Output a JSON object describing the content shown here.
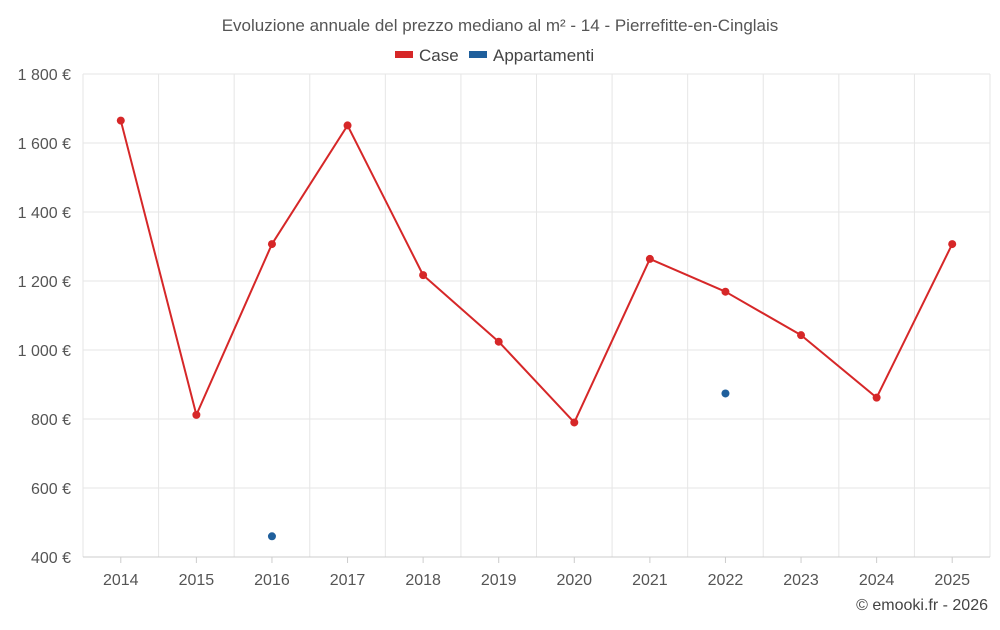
{
  "chart_data": {
    "type": "line",
    "title": "Evoluzione annuale del prezzo mediano al m² - 14 - Pierrefitte-en-Cinglais",
    "categories": [
      "2014",
      "2015",
      "2016",
      "2017",
      "2018",
      "2019",
      "2020",
      "2021",
      "2022",
      "2023",
      "2024",
      "2025"
    ],
    "series": [
      {
        "name": "Case",
        "color": "#d62728",
        "values": [
          1665,
          812,
          1307,
          1651,
          1217,
          1024,
          790,
          1264,
          1169,
          1043,
          862,
          1307
        ]
      },
      {
        "name": "Appartamenti",
        "color": "#1f5f9c",
        "values": [
          null,
          null,
          460,
          null,
          null,
          null,
          null,
          null,
          874,
          null,
          null,
          null
        ]
      }
    ],
    "y_ticks": [
      400,
      600,
      800,
      1000,
      1200,
      1400,
      1600,
      1800
    ],
    "y_tick_labels": [
      "400 €",
      "600 €",
      "800 €",
      "1 000 €",
      "1 200 €",
      "1 400 €",
      "1 600 €",
      "1 800 €"
    ],
    "ylim": [
      400,
      1800
    ],
    "xlabel": "",
    "ylabel": "",
    "grid": true,
    "legend_position": "top-center"
  },
  "credit": "© emooki.fr - 2026"
}
